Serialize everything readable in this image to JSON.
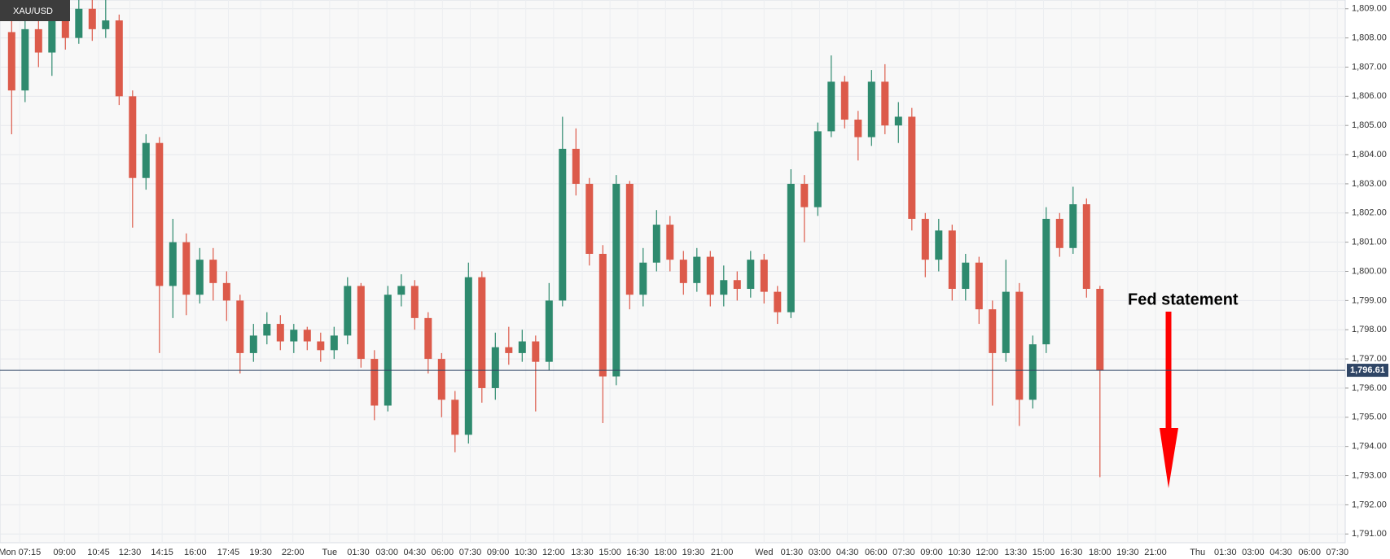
{
  "chart_data": {
    "type": "candlestick",
    "title": "XAU/USD",
    "annotation": "Fed statement",
    "up_color": "#2e8a6e",
    "down_color": "#dc5a4a",
    "last_price": 1796.61,
    "last_price_label": "1,796.61",
    "grid": true,
    "ylim": [
      1790.7,
      1809.3
    ],
    "yticks": [
      {
        "value": 1791,
        "label": "1,791.00"
      },
      {
        "value": 1792,
        "label": "1,792.00"
      },
      {
        "value": 1793,
        "label": "1,793.00"
      },
      {
        "value": 1794,
        "label": "1,794.00"
      },
      {
        "value": 1795,
        "label": "1,795.00"
      },
      {
        "value": 1796,
        "label": "1,796.00"
      },
      {
        "value": 1797,
        "label": "1,797.00"
      },
      {
        "value": 1798,
        "label": "1,798.00"
      },
      {
        "value": 1799,
        "label": "1,799.00"
      },
      {
        "value": 1800,
        "label": "1,800.00"
      },
      {
        "value": 1801,
        "label": "1,801.00"
      },
      {
        "value": 1802,
        "label": "1,802.00"
      },
      {
        "value": 1803,
        "label": "1,803.00"
      },
      {
        "value": 1804,
        "label": "1,804.00"
      },
      {
        "value": 1805,
        "label": "1,805.00"
      },
      {
        "value": 1806,
        "label": "1,806.00"
      },
      {
        "value": 1807,
        "label": "1,807.00"
      },
      {
        "value": 1808,
        "label": "1,808.00"
      },
      {
        "value": 1809,
        "label": "1,809.00"
      }
    ],
    "x_labels": [
      "Mon 07:15",
      "09:00",
      "10:45",
      "12:30",
      "14:15",
      "16:00",
      "17:45",
      "19:30",
      "22:00",
      "Tue",
      "01:30",
      "03:00",
      "04:30",
      "06:00",
      "07:30",
      "09:00",
      "10:30",
      "12:00",
      "13:30",
      "15:00",
      "16:30",
      "18:00",
      "19:30",
      "21:00",
      "Wed",
      "01:30",
      "03:00",
      "04:30",
      "06:00",
      "07:30",
      "09:00",
      "10:30",
      "12:00",
      "13:30",
      "15:00",
      "16:30",
      "18:00",
      "19:30",
      "21:00",
      "Thu",
      "01:30",
      "03:00",
      "04:30",
      "06:00",
      "07:30"
    ],
    "open": [
      1808.2,
      1806.2,
      1808.3,
      1807.5,
      1808.6,
      1808.0,
      1809.0,
      1808.3,
      1808.6,
      1806.0,
      1803.2,
      1804.4,
      1799.5,
      1801.0,
      1799.2,
      1800.4,
      1799.6,
      1799.0,
      1797.2,
      1797.8,
      1798.2,
      1797.6,
      1798.0,
      1797.6,
      1797.3,
      1797.8,
      1799.5,
      1797.0,
      1795.4,
      1799.2,
      1799.5,
      1798.4,
      1797.0,
      1795.6,
      1794.4,
      1799.8,
      1796.0,
      1797.4,
      1797.2,
      1797.6,
      1796.9,
      1799.0,
      1804.2,
      1803.0,
      1800.6,
      1796.4,
      1803.0,
      1799.2,
      1800.3,
      1801.6,
      1800.4,
      1799.6,
      1800.5,
      1799.2,
      1799.7,
      1799.4,
      1800.4,
      1799.3,
      1798.6,
      1803.0,
      1802.2,
      1804.8,
      1806.5,
      1805.2,
      1804.6,
      1806.5,
      1805.0,
      1805.3,
      1801.8,
      1800.4,
      1801.4,
      1799.4,
      1800.3,
      1798.7,
      1797.2,
      1799.3,
      1795.6,
      1797.5,
      1801.8,
      1800.8,
      1802.3,
      1799.4
    ],
    "high": [
      1808.6,
      1808.8,
      1808.7,
      1809.0,
      1809.1,
      1809.3,
      1809.3,
      1809.3,
      1808.8,
      1806.2,
      1804.7,
      1804.6,
      1801.8,
      1801.3,
      1800.8,
      1800.8,
      1800.0,
      1799.2,
      1798.2,
      1798.6,
      1798.5,
      1798.2,
      1798.1,
      1797.9,
      1798.1,
      1799.8,
      1799.6,
      1797.3,
      1799.5,
      1799.9,
      1799.7,
      1798.6,
      1797.2,
      1795.9,
      1800.3,
      1800.0,
      1797.9,
      1798.1,
      1798.0,
      1797.8,
      1799.6,
      1805.3,
      1804.9,
      1803.2,
      1800.9,
      1803.3,
      1803.1,
      1800.8,
      1802.1,
      1801.9,
      1800.7,
      1800.8,
      1800.7,
      1800.2,
      1800.0,
      1800.7,
      1800.6,
      1799.5,
      1803.5,
      1803.3,
      1805.1,
      1807.4,
      1806.7,
      1805.5,
      1806.9,
      1807.1,
      1805.8,
      1805.6,
      1802.0,
      1801.8,
      1801.6,
      1800.6,
      1800.5,
      1799.0,
      1800.4,
      1799.6,
      1797.8,
      1802.2,
      1802.0,
      1802.9,
      1802.5,
      1799.5
    ],
    "low": [
      1804.7,
      1805.8,
      1807.0,
      1806.7,
      1807.6,
      1807.8,
      1807.9,
      1808.0,
      1805.7,
      1801.5,
      1802.8,
      1797.2,
      1798.4,
      1798.5,
      1798.9,
      1799.0,
      1798.3,
      1796.5,
      1796.9,
      1797.5,
      1797.3,
      1797.2,
      1797.3,
      1796.9,
      1797.0,
      1797.5,
      1796.7,
      1794.9,
      1795.2,
      1798.8,
      1798.0,
      1796.5,
      1795.0,
      1793.8,
      1794.1,
      1795.5,
      1795.6,
      1796.8,
      1796.9,
      1795.2,
      1796.6,
      1798.8,
      1802.6,
      1800.2,
      1794.8,
      1796.1,
      1798.7,
      1798.8,
      1800.0,
      1800.0,
      1799.2,
      1799.3,
      1798.8,
      1798.8,
      1799.0,
      1799.1,
      1798.9,
      1798.2,
      1798.4,
      1801.0,
      1801.9,
      1804.6,
      1804.9,
      1803.8,
      1804.3,
      1804.7,
      1804.4,
      1801.4,
      1799.8,
      1800.0,
      1799.0,
      1799.0,
      1798.2,
      1795.4,
      1796.9,
      1794.7,
      1795.3,
      1797.2,
      1800.5,
      1800.6,
      1799.1,
      1792.95
    ],
    "close": [
      1806.2,
      1808.3,
      1807.5,
      1808.6,
      1808.0,
      1809.0,
      1808.3,
      1808.6,
      1806.0,
      1803.2,
      1804.4,
      1799.5,
      1801.0,
      1799.2,
      1800.4,
      1799.6,
      1799.0,
      1797.2,
      1797.8,
      1798.2,
      1797.6,
      1798.0,
      1797.6,
      1797.3,
      1797.8,
      1799.5,
      1797.0,
      1795.4,
      1799.2,
      1799.5,
      1798.4,
      1797.0,
      1795.6,
      1794.4,
      1799.8,
      1796.0,
      1797.4,
      1797.2,
      1797.6,
      1796.9,
      1799.0,
      1804.2,
      1803.0,
      1800.6,
      1796.4,
      1803.0,
      1799.2,
      1800.3,
      1801.6,
      1800.4,
      1799.6,
      1800.5,
      1799.2,
      1799.7,
      1799.4,
      1800.4,
      1799.3,
      1798.6,
      1803.0,
      1802.2,
      1804.8,
      1806.5,
      1805.2,
      1804.6,
      1806.5,
      1805.0,
      1805.3,
      1801.8,
      1800.4,
      1801.4,
      1799.4,
      1800.3,
      1798.7,
      1797.2,
      1799.3,
      1795.6,
      1797.5,
      1801.8,
      1800.8,
      1802.3,
      1799.4,
      1796.61
    ]
  }
}
